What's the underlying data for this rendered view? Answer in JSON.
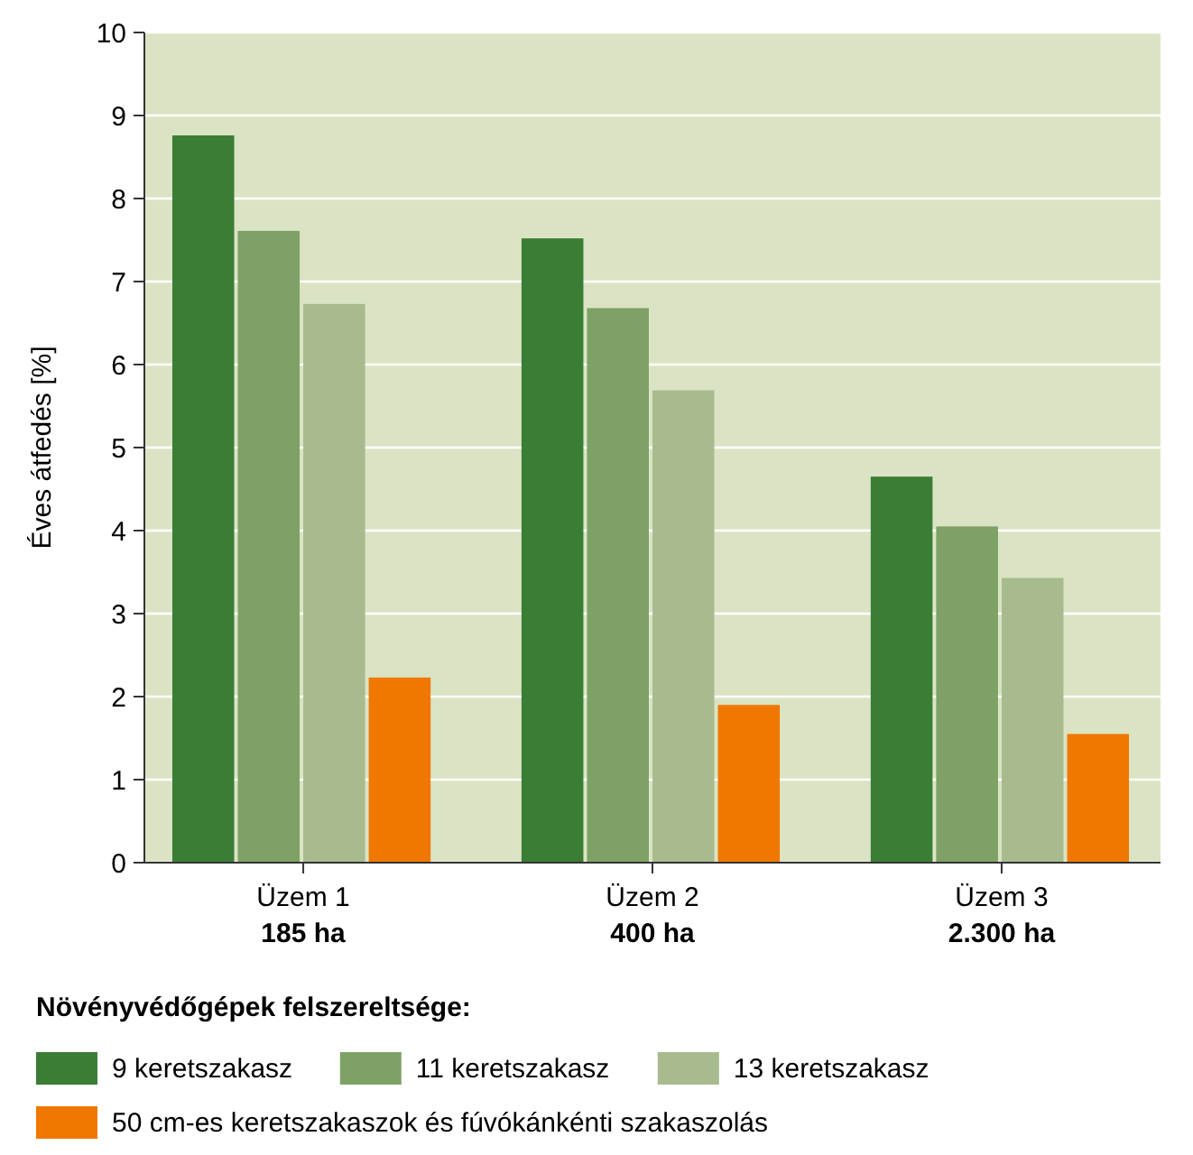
{
  "chart_data": {
    "type": "bar",
    "ylabel": "Éves átfedés [%]",
    "legend_title": "Növényvédőgépek felszereltsége:",
    "categories": [
      "Üzem 1\n185 ha",
      "Üzem 2\n400 ha",
      "Üzem 3\n2.300 ha"
    ],
    "series": [
      {
        "name": "9 keretszakasz",
        "color": "#3a7d35",
        "values": [
          8.76,
          7.52,
          4.65
        ]
      },
      {
        "name": "11 keretszakasz",
        "color": "#7ea265",
        "values": [
          7.61,
          6.68,
          4.05
        ]
      },
      {
        "name": "13 keretszakasz",
        "color": "#a8bb8e",
        "values": [
          6.73,
          5.69,
          3.43
        ]
      },
      {
        "name": "50 cm-es keretszakaszok és fúvókánkénti szakaszolás",
        "color": "#f07800",
        "values": [
          2.23,
          1.9,
          1.55
        ]
      }
    ],
    "ylim": [
      0,
      10
    ],
    "yticks": [
      0,
      1,
      2,
      3,
      4,
      5,
      6,
      7,
      8,
      9,
      10
    ],
    "grid": "y",
    "legend": "bottom"
  }
}
